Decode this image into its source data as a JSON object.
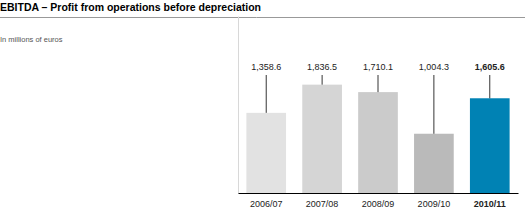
{
  "chart_data": {
    "type": "bar",
    "title": "EBITDA – Profit from operations before depreciation",
    "subtitle": "In millions of euros",
    "categories": [
      "2006/07",
      "2007/08",
      "2008/09",
      "2009/10",
      "2010/11"
    ],
    "values": [
      1358.6,
      1836.5,
      1710.1,
      1004.3,
      1605.6
    ],
    "value_labels": [
      "1,358.6",
      "1,836.5",
      "1,710.1",
      "1,004.3",
      "1,605.6"
    ],
    "colors": [
      "#e2e2e2",
      "#d5d5d5",
      "#cbcbcb",
      "#bababa",
      "#0082b4"
    ],
    "ylim": [
      0,
      3000
    ],
    "data_labels": true,
    "tick_labels": "x",
    "grid": false
  }
}
